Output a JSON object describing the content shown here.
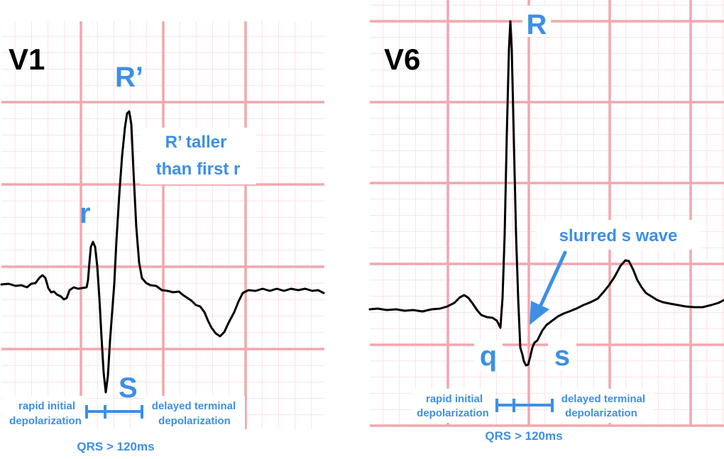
{
  "panels": {
    "v1": {
      "lead": "V1",
      "r_label": "r",
      "r_prime_label": "R’",
      "s_label": "S",
      "note_line1": "R’ taller",
      "note_line2": "than first r",
      "rapid_line1": "rapid initial",
      "rapid_line2": "depolarization",
      "delayed_line1": "delayed terminal",
      "delayed_line2": "depolarization",
      "qrs": "QRS > 120ms"
    },
    "v6": {
      "lead": "V6",
      "R_label": "R",
      "q_label": "q",
      "s_label": "s",
      "slurred": "slurred s wave",
      "rapid_line1": "rapid initial",
      "rapid_line2": "depolarization",
      "delayed_line1": "delayed terminal",
      "delayed_line2": "depolarization",
      "qrs": "QRS > 120ms"
    }
  },
  "colors": {
    "grid_major": "#f2a7ad",
    "grid_minor": "#fbe1e3",
    "trace": "#000000",
    "accent": "#3d8fe6"
  }
}
